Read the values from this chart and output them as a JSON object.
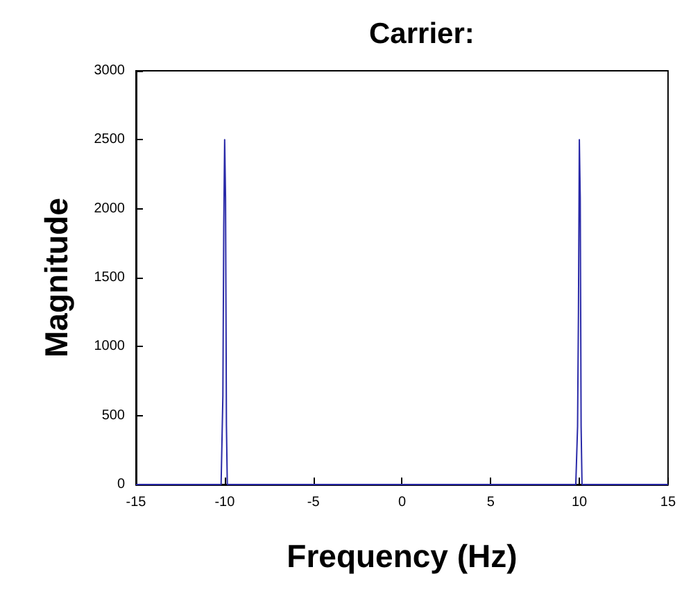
{
  "chart_data": {
    "type": "line",
    "title": "Carrier:",
    "xlabel": "Frequency (Hz)",
    "ylabel": "Magnitude",
    "x": [
      -15,
      -10.3,
      -10.2,
      -10.15,
      -10.1,
      -10.05,
      -10,
      -9.95,
      -9.9,
      -9.85,
      -9.8,
      -9.7,
      9.7,
      9.8,
      9.85,
      9.9,
      9.95,
      10,
      10.05,
      10.1,
      10.15,
      10.2,
      10.3,
      15
    ],
    "series": [
      {
        "color": "#2a2aa8",
        "values": [
          0,
          0,
          0,
          0,
          640,
          1870,
          2500,
          2080,
          430,
          0,
          0,
          0,
          0,
          0,
          0,
          420,
          1250,
          2500,
          2080,
          420,
          0,
          0,
          0,
          0
        ]
      }
    ],
    "xlim": [
      -15,
      15
    ],
    "xticks": [
      -15,
      -10,
      -5,
      0,
      5,
      10,
      15
    ],
    "ylim": [
      0,
      3000
    ],
    "yticks": [
      0,
      500,
      1000,
      1500,
      2000,
      2500,
      3000
    ],
    "grid": false,
    "marker": "none",
    "line_style": "solid"
  }
}
